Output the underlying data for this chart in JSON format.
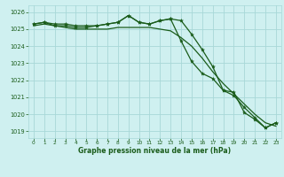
{
  "title": "Graphe pression niveau de la mer (hPa)",
  "background_color": "#cff0f0",
  "grid_color": "#a8d8d8",
  "line_color": "#1a5c1a",
  "xlim": [
    -0.5,
    23.5
  ],
  "ylim": [
    1018.6,
    1026.4
  ],
  "xticks": [
    0,
    1,
    2,
    3,
    4,
    5,
    6,
    7,
    8,
    9,
    10,
    11,
    12,
    13,
    14,
    15,
    16,
    17,
    18,
    19,
    20,
    21,
    22,
    23
  ],
  "yticks": [
    1019,
    1020,
    1021,
    1022,
    1023,
    1024,
    1025,
    1026
  ],
  "series1_no_marker": [
    1025.2,
    1025.3,
    1025.2,
    1025.1,
    1025.0,
    1025.0,
    1025.0,
    1025.0,
    1025.1,
    1025.1,
    1025.1,
    1025.1,
    1025.0,
    1024.9,
    1024.5,
    1024.0,
    1023.3,
    1022.5,
    1021.8,
    1021.2,
    1020.6,
    1020.0,
    1019.5,
    1019.3
  ],
  "series2": [
    1025.3,
    1025.4,
    1025.3,
    1025.3,
    1025.2,
    1025.2,
    1025.2,
    1025.3,
    1025.4,
    1025.8,
    1025.4,
    1025.3,
    1025.5,
    1025.6,
    1025.5,
    1024.7,
    1023.8,
    1022.8,
    1021.4,
    1021.3,
    1020.1,
    1019.7,
    1019.2,
    1019.5
  ],
  "series3": [
    1025.3,
    1025.4,
    1025.2,
    1025.2,
    1025.1,
    1025.1,
    1025.2,
    1025.3,
    1025.4,
    1025.8,
    1025.4,
    1025.3,
    1025.5,
    1025.6,
    1024.3,
    1023.1,
    1022.4,
    1022.1,
    1021.4,
    1021.1,
    1020.4,
    1019.8,
    1019.2,
    1019.5
  ]
}
